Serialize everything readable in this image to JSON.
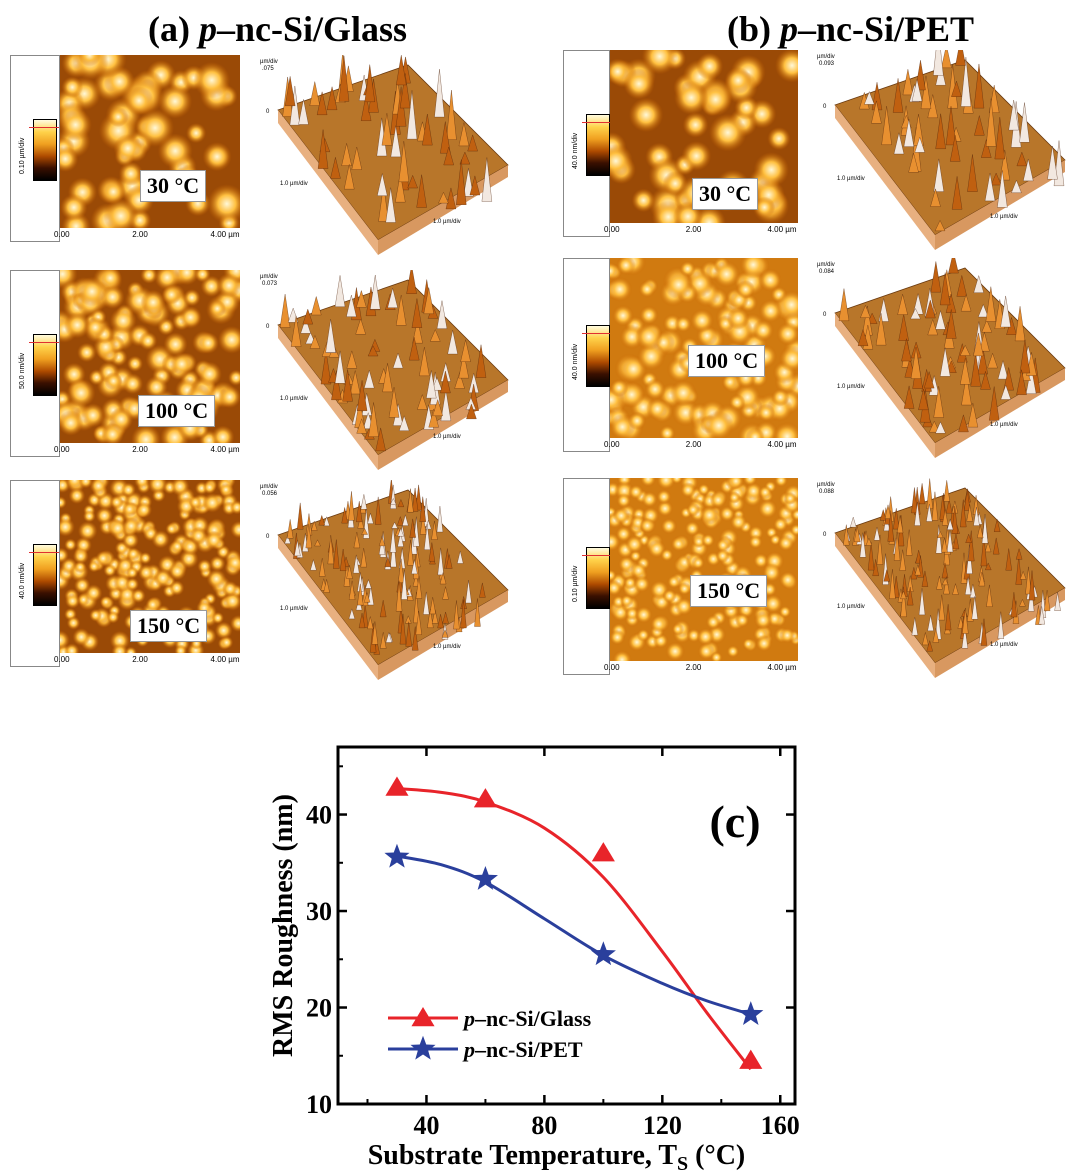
{
  "panels": {
    "a": {
      "prefix": "(a) ",
      "italic": "p",
      "suffix": "–nc-Si/Glass"
    },
    "b": {
      "prefix": "(b) ",
      "italic": "p",
      "suffix": "–nc-Si/PET"
    }
  },
  "afm": {
    "a": [
      {
        "temp": "30 °C",
        "scale": "0.10 µm/div",
        "zlabel_top": "µm/div",
        "zlabel_val": ".075",
        "x_ticks": [
          "0.00",
          "2.00",
          "4.00 µm"
        ],
        "div_x": "1.0 µm/div",
        "div_y": "1.0 µm/div",
        "zero": "0"
      },
      {
        "temp": "100 °C",
        "scale": "50.0 nm/div",
        "zlabel_top": "µm/div",
        "zlabel_val": "0.073",
        "x_ticks": [
          "0.00",
          "2.00",
          "4.00 µm"
        ],
        "div_x": "1.0 µm/div",
        "div_y": "1.0 µm/div",
        "zero": "0"
      },
      {
        "temp": "150 °C",
        "scale": "40.0 nm/div",
        "zlabel_top": "µm/div",
        "zlabel_val": "0.056",
        "x_ticks": [
          "0.00",
          "2.00",
          "4.00 µm"
        ],
        "div_x": "1.0 µm/div",
        "div_y": "1.0 µm/div",
        "zero": "0"
      }
    ],
    "b": [
      {
        "temp": "30 °C",
        "scale": "40.0 nm/div",
        "zlabel_top": "µm/div",
        "zlabel_val": "0.093",
        "x_ticks": [
          "0.00",
          "2.00",
          "4.00 µm"
        ],
        "div_x": "1.0 µm/div",
        "div_y": "1.0 µm/div",
        "zero": "0"
      },
      {
        "temp": "100 °C",
        "scale": "40.0 nm/div",
        "zlabel_top": "µm/div",
        "zlabel_val": "0.084",
        "x_ticks": [
          "0.00",
          "2.00",
          "4.00 µm"
        ],
        "div_x": "1.0 µm/div",
        "div_y": "1.0 µm/div",
        "zero": "0"
      },
      {
        "temp": "150 °C",
        "scale": "0.10 µm/div",
        "zlabel_top": "µm/div",
        "zlabel_val": "0.088",
        "x_ticks": [
          "0.00",
          "2.00",
          "4.00 µm"
        ],
        "div_x": "1.0 µm/div",
        "div_y": "1.0 µm/div",
        "zero": "0"
      }
    ]
  },
  "chart_data": {
    "type": "line",
    "panel_label": "(c)",
    "ylabel": "RMS Roughness (nm)",
    "xlabel": "Substrate Temperature, T",
    "xlabel_sub": "S",
    "xlabel_unit": " (°C)",
    "xlim": [
      10,
      165
    ],
    "ylim": [
      10,
      47
    ],
    "xticks": [
      40,
      80,
      120,
      160
    ],
    "yticks": [
      10,
      20,
      30,
      40
    ],
    "series": [
      {
        "name_italic": "p",
        "name_rest": "–nc-Si/Glass",
        "marker": "triangle",
        "color": "#e8242a",
        "x": [
          30,
          60,
          100,
          150
        ],
        "y": [
          42.8,
          41.6,
          36.0,
          14.5
        ],
        "curve_x": [
          30,
          45,
          60,
          80,
          100,
          120,
          135,
          150
        ],
        "curve_y": [
          42.7,
          42.3,
          41.3,
          38.6,
          33.5,
          25.8,
          19.5,
          13.6
        ]
      },
      {
        "name_italic": "p",
        "name_rest": "–nc-Si/PET",
        "marker": "star",
        "color": "#2a3f9c",
        "x": [
          30,
          60,
          100,
          150
        ],
        "y": [
          35.6,
          33.3,
          25.5,
          19.3
        ],
        "curve_x": [
          30,
          45,
          60,
          80,
          100,
          120,
          135,
          150
        ],
        "curve_y": [
          35.7,
          34.8,
          33.0,
          29.2,
          25.4,
          22.5,
          20.7,
          19.3
        ]
      }
    ],
    "legend": "lower-left"
  }
}
